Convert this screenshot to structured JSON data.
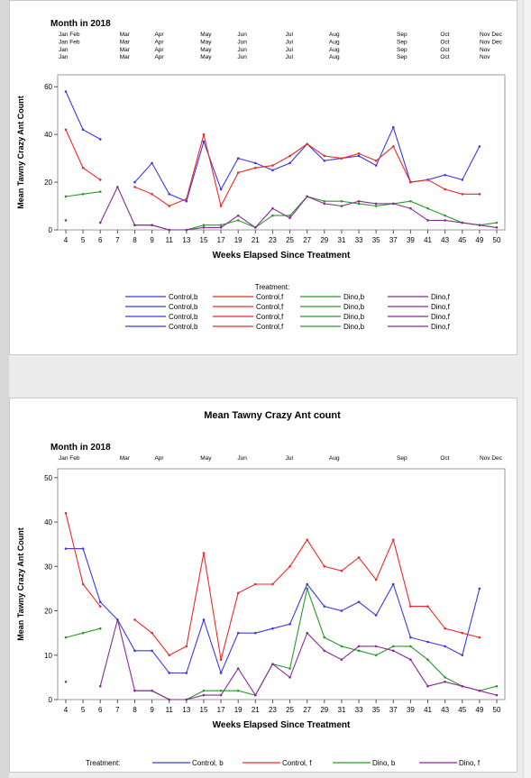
{
  "chart_data": [
    {
      "type": "line",
      "title": "",
      "month_header_title": "Month in 2018",
      "month_rows": [
        [
          "Jan Feb",
          "Mar",
          "Apr",
          "May",
          "Jun",
          "Jul",
          "Aug",
          "Sep",
          "Oct",
          "Nov Dec"
        ],
        [
          "Jan Feb",
          "Mar",
          "Apr",
          "May",
          "Jun",
          "Jul",
          "Aug",
          "Sep",
          "Oct",
          "Nov Dec"
        ],
        [
          "Jan",
          "Mar",
          "Apr",
          "May",
          "Jun",
          "Jul",
          "Aug",
          "Sep",
          "Oct",
          "Nov"
        ],
        [
          "Jan",
          "Mar",
          "Apr",
          "May",
          "Jun",
          "Jul",
          "Aug",
          "Sep",
          "Oct",
          "Nov"
        ]
      ],
      "xlabel": "Weeks Elapsed Since Treatment",
      "ylabel": "Mean Tawny Crazy Ant Count",
      "categories": [
        "4",
        "5",
        "6",
        "7",
        "8",
        "9",
        "11",
        "13",
        "15",
        "17",
        "19",
        "21",
        "23",
        "25",
        "27",
        "29",
        "31",
        "33",
        "35",
        "37",
        "39",
        "41",
        "43",
        "45",
        "49",
        "50"
      ],
      "ylim": [
        0,
        65
      ],
      "yticks": [
        0,
        20,
        40,
        60
      ],
      "legend_title": "Treatment:",
      "legend_entries": [
        [
          "Control,b",
          "Control,f",
          "Dino,b",
          "Dino,f"
        ],
        [
          "Control,b",
          "Control,f",
          "Dino,b",
          "Dino,f"
        ],
        [
          "Control,b",
          "Control,f",
          "Dino,b",
          "Dino,f"
        ],
        [
          "Control,b",
          "Control,f",
          "Dino,b",
          "Dino,f"
        ]
      ],
      "series": [
        {
          "name": "Control,b",
          "color": "#3a3ae8",
          "values": [
            58,
            42,
            38,
            null,
            20,
            28,
            15,
            12,
            37,
            17,
            30,
            28,
            25,
            28,
            36,
            29,
            30,
            31,
            27,
            43,
            20,
            21,
            23,
            21,
            35,
            null
          ]
        },
        {
          "name": "Control,f",
          "color": "#ee2a2a",
          "values": [
            42,
            26,
            21,
            null,
            18,
            15,
            10,
            13,
            40,
            10,
            24,
            26,
            27,
            31,
            36,
            31,
            30,
            32,
            29,
            35,
            20,
            21,
            17,
            15,
            15,
            null
          ]
        },
        {
          "name": "Dino,b",
          "color": "#2a9a2a",
          "values": [
            14,
            15,
            16,
            null,
            2,
            2,
            0,
            0,
            2,
            2,
            4,
            1,
            6,
            6,
            14,
            12,
            12,
            11,
            10,
            11,
            12,
            9,
            6,
            3,
            2,
            3
          ]
        },
        {
          "name": "Dino,f",
          "color": "#8a2a9a",
          "values": [
            4,
            null,
            3,
            18,
            2,
            2,
            0,
            0,
            1,
            1,
            6,
            1,
            9,
            5,
            14,
            11,
            10,
            12,
            11,
            11,
            9,
            4,
            4,
            3,
            2,
            1
          ]
        }
      ]
    },
    {
      "type": "line",
      "title": "Mean Tawny Crazy Ant count",
      "month_header_title": "Month in 2018",
      "month_rows": [
        [
          "Jan Feb",
          "Mar",
          "Apr",
          "May",
          "Jun",
          "Jul",
          "Aug",
          "Sep",
          "Oct",
          "Nov Dec"
        ]
      ],
      "xlabel": "Weeks Elapsed Since Treatment",
      "ylabel": "Mean Tawny Crazy Ant Count",
      "categories": [
        "4",
        "5",
        "6",
        "7",
        "8",
        "9",
        "11",
        "13",
        "15",
        "17",
        "19",
        "21",
        "23",
        "25",
        "27",
        "29",
        "31",
        "33",
        "35",
        "37",
        "39",
        "41",
        "43",
        "45",
        "49",
        "50"
      ],
      "ylim": [
        0,
        52
      ],
      "yticks": [
        0,
        10,
        20,
        30,
        40,
        50
      ],
      "legend_title": "Treatment:",
      "legend_entries": [
        [
          "Control, b",
          "Control, f",
          "Dino, b",
          "Dino, f"
        ]
      ],
      "series": [
        {
          "name": "Control, b",
          "color": "#3a3ae8",
          "values": [
            34,
            34,
            22,
            18,
            11,
            11,
            6,
            6,
            18,
            6,
            15,
            15,
            16,
            17,
            26,
            21,
            20,
            22,
            19,
            26,
            14,
            13,
            12,
            10,
            25,
            null
          ]
        },
        {
          "name": "Control, f",
          "color": "#ee2a2a",
          "values": [
            42,
            26,
            21,
            null,
            18,
            15,
            10,
            12,
            33,
            9,
            24,
            26,
            26,
            30,
            36,
            30,
            29,
            32,
            27,
            36,
            21,
            21,
            16,
            15,
            14,
            null
          ]
        },
        {
          "name": "Dino, b",
          "color": "#2a9a2a",
          "values": [
            14,
            15,
            16,
            null,
            2,
            2,
            0,
            0,
            2,
            2,
            2,
            1,
            8,
            7,
            25,
            14,
            12,
            11,
            10,
            12,
            12,
            9,
            5,
            3,
            2,
            3
          ]
        },
        {
          "name": "Dino, f",
          "color": "#8a2a9a",
          "values": [
            4,
            null,
            3,
            18,
            2,
            2,
            0,
            0,
            1,
            1,
            7,
            1,
            8,
            5,
            15,
            11,
            9,
            12,
            12,
            11,
            9,
            3,
            4,
            3,
            2,
            1
          ]
        }
      ]
    }
  ]
}
